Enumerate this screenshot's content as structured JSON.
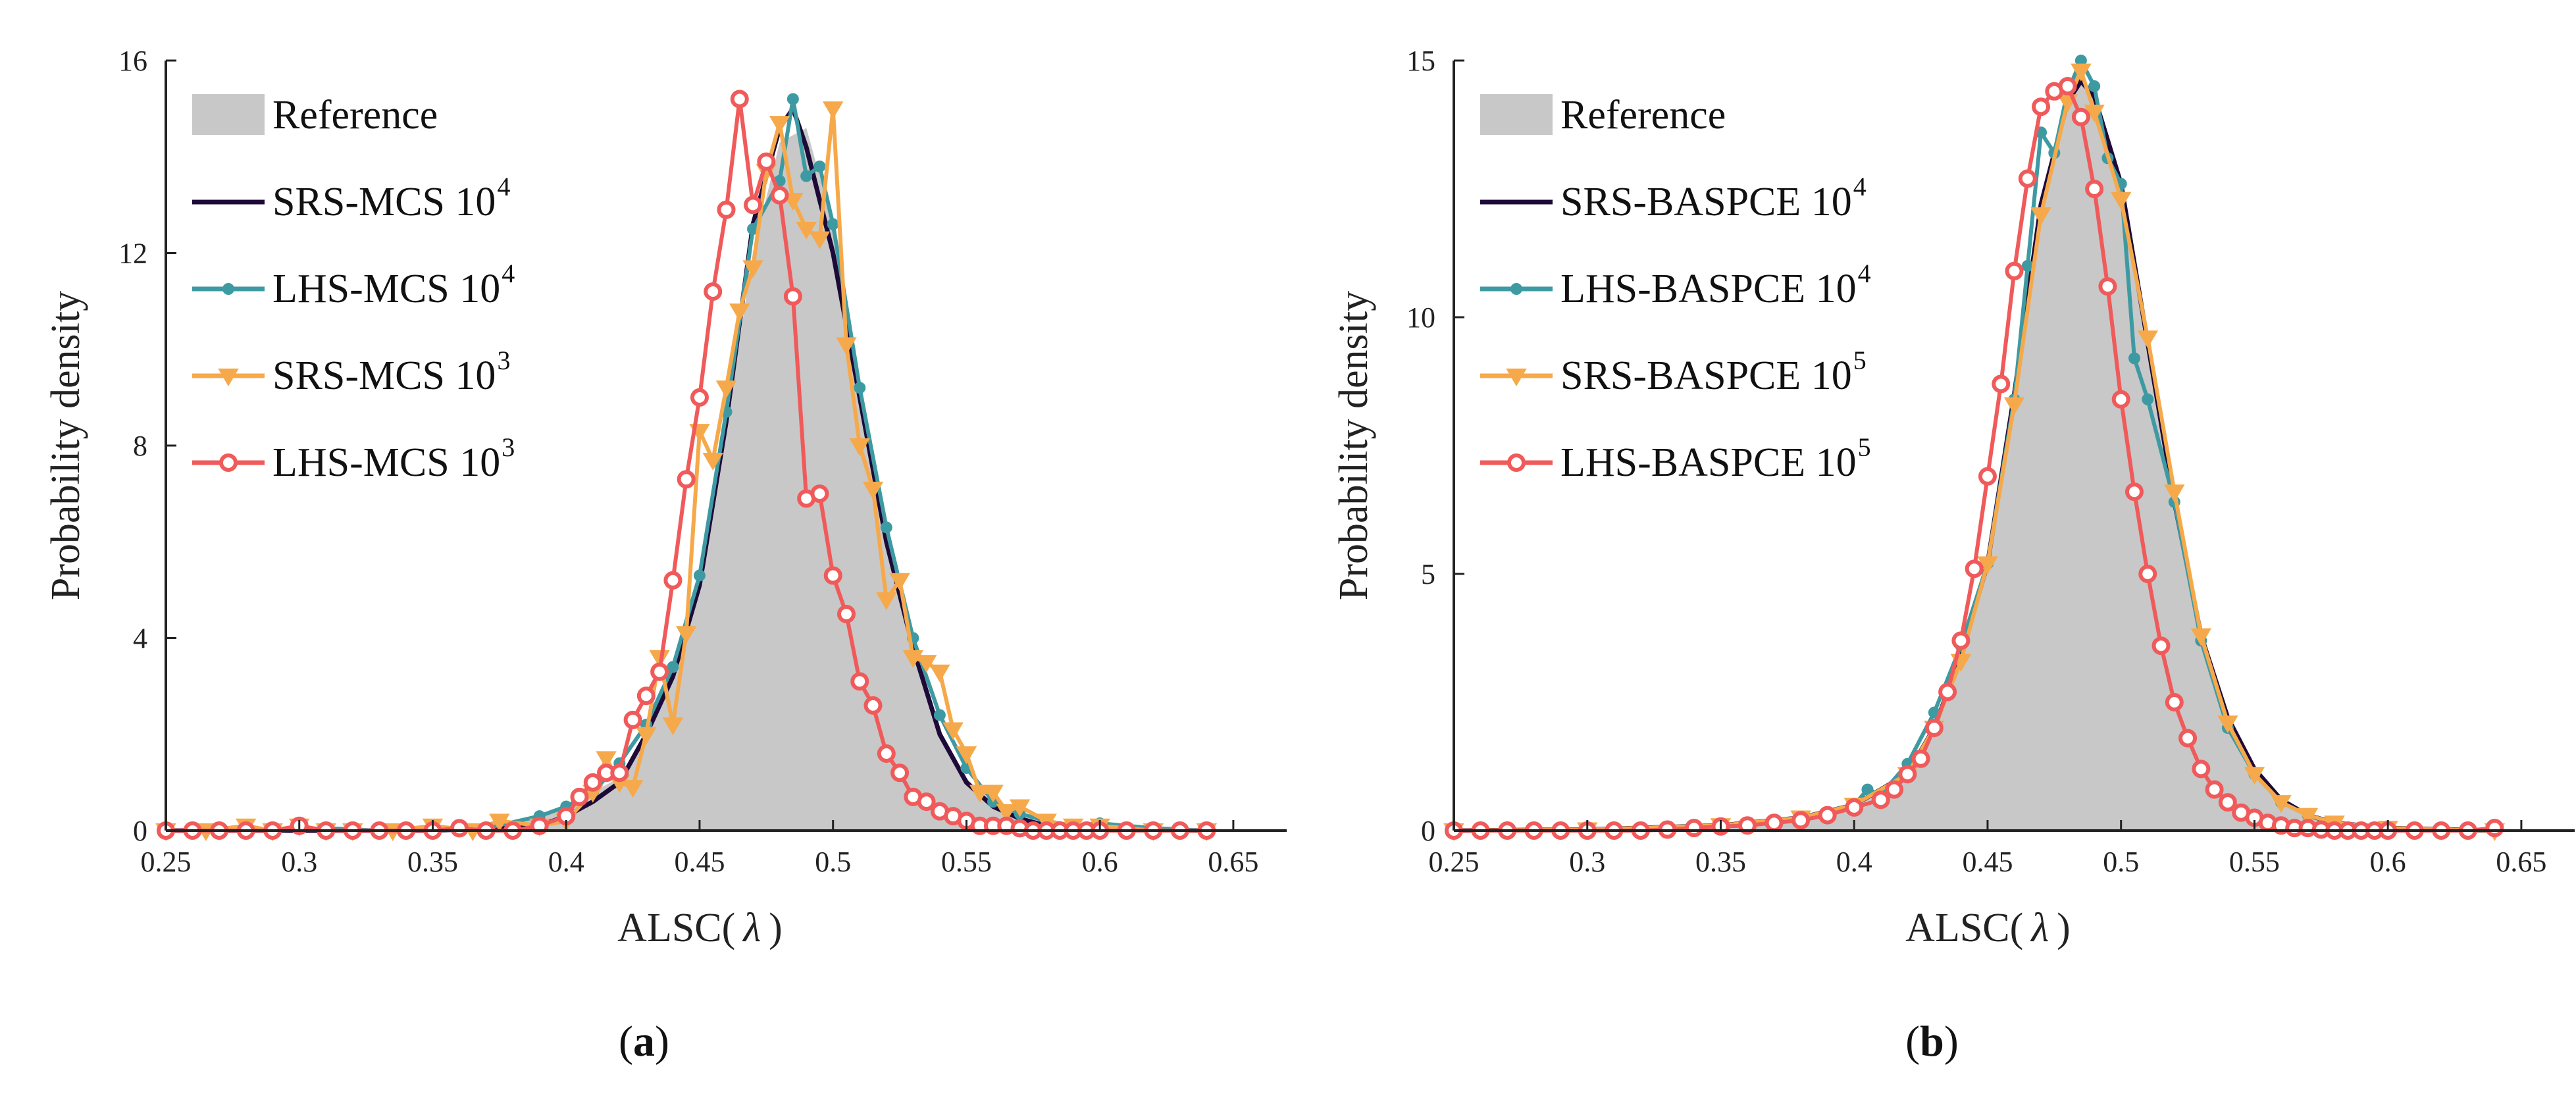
{
  "charts": [
    {
      "id": "a",
      "caption_letter": "a",
      "ylabel": "Probability density",
      "xlabel_prefix": "ALSC(",
      "xlabel_symbol": "λ",
      "xlabel_suffix": ")",
      "xlim": [
        0.25,
        0.67
      ],
      "ylim": [
        0,
        16
      ],
      "xticks": [
        "0.25",
        "0.3",
        "0.35",
        "0.4",
        "0.45",
        "0.5",
        "0.55",
        "0.6",
        "0.65"
      ],
      "yticks": [
        "0",
        "4",
        "8",
        "12",
        "16"
      ],
      "legend": [
        {
          "label": "Reference",
          "sup": ""
        },
        {
          "label": "SRS-MCS 10",
          "sup": "4"
        },
        {
          "label": "LHS-MCS 10",
          "sup": "4"
        },
        {
          "label": "SRS-MCS 10",
          "sup": "3"
        },
        {
          "label": "LHS-MCS 10",
          "sup": "3"
        }
      ]
    },
    {
      "id": "b",
      "caption_letter": "b",
      "ylabel": "Probability density",
      "xlabel_prefix": "ALSC(",
      "xlabel_symbol": "λ",
      "xlabel_suffix": ")",
      "xlim": [
        0.25,
        0.67
      ],
      "ylim": [
        0,
        15
      ],
      "xticks": [
        "0.25",
        "0.3",
        "0.35",
        "0.4",
        "0.45",
        "0.5",
        "0.55",
        "0.6",
        "0.65"
      ],
      "yticks": [
        "0",
        "5",
        "10",
        "15"
      ],
      "legend": [
        {
          "label": "Reference",
          "sup": ""
        },
        {
          "label": "SRS-BASPCE 10",
          "sup": "4"
        },
        {
          "label": "LHS-BASPCE 10",
          "sup": "4"
        },
        {
          "label": "SRS-BASPCE 10",
          "sup": "5"
        },
        {
          "label": "LHS-BASPCE 10",
          "sup": "5"
        }
      ]
    }
  ],
  "colors": {
    "reference": "#c8c8c8",
    "srs_large": "#1d0a38",
    "lhs_large": "#3e9aa2",
    "srs_small": "#f6a94a",
    "lhs_small": "#f05a5a",
    "axis": "#222222"
  },
  "chart_data": [
    {
      "type": "area",
      "title": "(a)",
      "xlabel": "ALSC(λ)",
      "ylabel": "Probability density",
      "xlim": [
        0.25,
        0.67
      ],
      "ylim": [
        0,
        16
      ],
      "series": [
        {
          "name": "Reference",
          "style": "histogram",
          "x": [
            0.25,
            0.3,
            0.35,
            0.38,
            0.4,
            0.42,
            0.43,
            0.44,
            0.45,
            0.46,
            0.47,
            0.48,
            0.49,
            0.5,
            0.51,
            0.52,
            0.53,
            0.54,
            0.55,
            0.56,
            0.57,
            0.58,
            0.6,
            0.64
          ],
          "y": [
            0,
            0,
            0,
            0.2,
            0.5,
            1.1,
            2.0,
            3.3,
            5.3,
            8.4,
            12.0,
            14.3,
            14.6,
            12.6,
            9.4,
            6.2,
            3.7,
            2.1,
            1.1,
            0.5,
            0.25,
            0.1,
            0.02,
            0
          ]
        },
        {
          "name": "SRS-MCS 10^4",
          "style": "line",
          "x": [
            0.25,
            0.35,
            0.39,
            0.4,
            0.41,
            0.42,
            0.43,
            0.44,
            0.45,
            0.46,
            0.47,
            0.48,
            0.485,
            0.49,
            0.5,
            0.51,
            0.52,
            0.53,
            0.54,
            0.55,
            0.56,
            0.57,
            0.58,
            0.6,
            0.64
          ],
          "y": [
            0,
            0,
            0.1,
            0.3,
            0.6,
            1.0,
            2.0,
            3.2,
            5.1,
            8.5,
            12.6,
            14.6,
            15.0,
            14.2,
            12.0,
            9.0,
            6.0,
            3.8,
            2.0,
            1.0,
            0.5,
            0.25,
            0.1,
            0.02,
            0
          ]
        },
        {
          "name": "LHS-MCS 10^4",
          "style": "line+dot",
          "x": [
            0.25,
            0.27,
            0.29,
            0.31,
            0.33,
            0.35,
            0.37,
            0.39,
            0.4,
            0.41,
            0.42,
            0.43,
            0.44,
            0.45,
            0.46,
            0.47,
            0.48,
            0.485,
            0.49,
            0.495,
            0.5,
            0.51,
            0.52,
            0.53,
            0.54,
            0.55,
            0.56,
            0.57,
            0.58,
            0.59,
            0.6,
            0.62,
            0.64
          ],
          "y": [
            0,
            0,
            0,
            0.05,
            0,
            0,
            0.05,
            0.3,
            0.5,
            0.8,
            1.4,
            2.2,
            3.4,
            5.3,
            8.7,
            12.5,
            13.5,
            15.2,
            13.6,
            13.8,
            12.6,
            9.2,
            6.3,
            4.0,
            2.4,
            1.3,
            0.6,
            0.35,
            0.2,
            0.1,
            0.15,
            0.05,
            0
          ]
        },
        {
          "name": "SRS-MCS 10^3",
          "style": "line+triangle",
          "x": [
            0.25,
            0.265,
            0.28,
            0.29,
            0.3,
            0.31,
            0.32,
            0.335,
            0.35,
            0.365,
            0.375,
            0.39,
            0.4,
            0.41,
            0.415,
            0.42,
            0.425,
            0.43,
            0.435,
            0.44,
            0.445,
            0.45,
            0.455,
            0.46,
            0.465,
            0.47,
            0.475,
            0.48,
            0.485,
            0.49,
            0.495,
            0.5,
            0.505,
            0.51,
            0.515,
            0.52,
            0.525,
            0.53,
            0.535,
            0.54,
            0.545,
            0.55,
            0.555,
            0.56,
            0.565,
            0.57,
            0.58,
            0.59,
            0.6,
            0.62,
            0.64
          ],
          "y": [
            0,
            0,
            0.1,
            0,
            0.1,
            0,
            0,
            0,
            0.1,
            0,
            0.2,
            0.1,
            0.2,
            0.8,
            1.5,
            1.0,
            0.9,
            2.0,
            3.6,
            2.2,
            4.1,
            8.3,
            7.7,
            9.2,
            10.8,
            11.7,
            13.7,
            14.7,
            13.1,
            12.5,
            12.3,
            15.0,
            10.1,
            8.0,
            7.1,
            4.8,
            5.2,
            3.6,
            3.5,
            3.3,
            2.1,
            1.6,
            0.8,
            0.8,
            0.4,
            0.5,
            0.2,
            0.1,
            0.1,
            0,
            0
          ]
        },
        {
          "name": "LHS-MCS 10^3",
          "style": "line+circle",
          "x": [
            0.25,
            0.26,
            0.27,
            0.28,
            0.29,
            0.3,
            0.31,
            0.32,
            0.33,
            0.34,
            0.35,
            0.36,
            0.37,
            0.38,
            0.39,
            0.4,
            0.405,
            0.41,
            0.415,
            0.42,
            0.425,
            0.43,
            0.435,
            0.44,
            0.445,
            0.45,
            0.455,
            0.46,
            0.465,
            0.47,
            0.475,
            0.48,
            0.485,
            0.49,
            0.495,
            0.5,
            0.505,
            0.51,
            0.515,
            0.52,
            0.525,
            0.53,
            0.535,
            0.54,
            0.545,
            0.55,
            0.555,
            0.56,
            0.565,
            0.57,
            0.575,
            0.58,
            0.585,
            0.59,
            0.595,
            0.6,
            0.61,
            0.62,
            0.63,
            0.64
          ],
          "y": [
            0,
            0,
            0,
            0,
            0,
            0.1,
            0,
            0,
            0,
            0,
            0,
            0.05,
            0,
            0,
            0.1,
            0.3,
            0.7,
            1.0,
            1.2,
            1.2,
            2.3,
            2.8,
            3.3,
            5.2,
            7.3,
            9.0,
            11.2,
            12.9,
            15.2,
            13.0,
            13.9,
            13.2,
            11.1,
            6.9,
            7.0,
            5.3,
            4.5,
            3.1,
            2.6,
            1.6,
            1.2,
            0.7,
            0.6,
            0.4,
            0.3,
            0.2,
            0.1,
            0.1,
            0.1,
            0.05,
            0,
            0,
            0,
            0,
            0,
            0,
            0,
            0,
            0,
            0
          ]
        }
      ]
    },
    {
      "type": "area",
      "title": "(b)",
      "xlabel": "ALSC(λ)",
      "ylabel": "Probability density",
      "xlim": [
        0.25,
        0.67
      ],
      "ylim": [
        0,
        15
      ],
      "series": [
        {
          "name": "Reference",
          "style": "histogram",
          "x": [
            0.25,
            0.35,
            0.38,
            0.4,
            0.42,
            0.43,
            0.44,
            0.45,
            0.46,
            0.47,
            0.48,
            0.485,
            0.49,
            0.5,
            0.51,
            0.52,
            0.53,
            0.54,
            0.55,
            0.56,
            0.57,
            0.58,
            0.6,
            0.64
          ],
          "y": [
            0,
            0.05,
            0.2,
            0.5,
            1.2,
            2.1,
            3.4,
            5.3,
            8.2,
            11.9,
            14.2,
            14.6,
            14.3,
            12.4,
            9.3,
            6.3,
            3.9,
            2.2,
            1.2,
            0.6,
            0.3,
            0.15,
            0.05,
            0
          ]
        },
        {
          "name": "SRS-BASPCE 10^4",
          "style": "line",
          "x": [
            0.25,
            0.3,
            0.35,
            0.38,
            0.4,
            0.42,
            0.43,
            0.44,
            0.45,
            0.46,
            0.47,
            0.48,
            0.485,
            0.49,
            0.5,
            0.51,
            0.52,
            0.53,
            0.54,
            0.55,
            0.56,
            0.57,
            0.58,
            0.6,
            0.64
          ],
          "y": [
            0,
            0.02,
            0.1,
            0.25,
            0.5,
            1.1,
            2.0,
            3.4,
            5.2,
            8.5,
            12.2,
            14.2,
            14.6,
            14.3,
            12.6,
            9.5,
            6.4,
            3.8,
            2.2,
            1.2,
            0.6,
            0.3,
            0.15,
            0.05,
            0
          ]
        },
        {
          "name": "LHS-BASPCE 10^4",
          "style": "line+dot",
          "x": [
            0.25,
            0.3,
            0.35,
            0.38,
            0.4,
            0.405,
            0.41,
            0.42,
            0.43,
            0.44,
            0.45,
            0.46,
            0.465,
            0.47,
            0.475,
            0.48,
            0.485,
            0.49,
            0.495,
            0.5,
            0.505,
            0.51,
            0.52,
            0.53,
            0.54,
            0.55,
            0.56,
            0.57,
            0.58,
            0.6,
            0.64
          ],
          "y": [
            0,
            0.02,
            0.1,
            0.25,
            0.5,
            0.8,
            0.7,
            1.3,
            2.3,
            3.6,
            5.2,
            8.4,
            11.0,
            13.6,
            13.2,
            14.4,
            15.0,
            14.5,
            13.1,
            12.6,
            9.2,
            8.4,
            6.4,
            3.7,
            2.0,
            1.1,
            0.55,
            0.3,
            0.15,
            0.05,
            0
          ]
        },
        {
          "name": "SRS-BASPCE 10^5",
          "style": "line+triangle",
          "x": [
            0.25,
            0.3,
            0.35,
            0.38,
            0.4,
            0.42,
            0.43,
            0.44,
            0.45,
            0.46,
            0.47,
            0.48,
            0.485,
            0.49,
            0.5,
            0.51,
            0.52,
            0.53,
            0.54,
            0.55,
            0.56,
            0.57,
            0.58,
            0.6,
            0.64
          ],
          "y": [
            0,
            0.02,
            0.1,
            0.25,
            0.5,
            1.1,
            2.0,
            3.3,
            5.2,
            8.3,
            12.0,
            14.2,
            14.8,
            14.0,
            12.3,
            9.6,
            6.6,
            3.8,
            2.1,
            1.1,
            0.55,
            0.3,
            0.15,
            0.05,
            0
          ]
        },
        {
          "name": "LHS-BASPCE 10^5",
          "style": "line+circle",
          "x": [
            0.25,
            0.26,
            0.27,
            0.28,
            0.29,
            0.3,
            0.31,
            0.32,
            0.33,
            0.34,
            0.35,
            0.36,
            0.37,
            0.38,
            0.39,
            0.4,
            0.41,
            0.415,
            0.42,
            0.425,
            0.43,
            0.435,
            0.44,
            0.445,
            0.45,
            0.455,
            0.46,
            0.465,
            0.47,
            0.475,
            0.48,
            0.485,
            0.49,
            0.495,
            0.5,
            0.505,
            0.51,
            0.515,
            0.52,
            0.525,
            0.53,
            0.535,
            0.54,
            0.545,
            0.55,
            0.555,
            0.56,
            0.565,
            0.57,
            0.575,
            0.58,
            0.585,
            0.59,
            0.595,
            0.6,
            0.61,
            0.62,
            0.63,
            0.64
          ],
          "y": [
            0,
            0,
            0,
            0,
            0,
            0,
            0,
            0,
            0.02,
            0.05,
            0.08,
            0.1,
            0.15,
            0.2,
            0.3,
            0.45,
            0.6,
            0.8,
            1.1,
            1.4,
            2.0,
            2.7,
            3.7,
            5.1,
            6.9,
            8.7,
            10.9,
            12.7,
            14.1,
            14.4,
            14.5,
            13.9,
            12.5,
            10.6,
            8.4,
            6.6,
            5.0,
            3.6,
            2.5,
            1.8,
            1.2,
            0.8,
            0.55,
            0.35,
            0.25,
            0.15,
            0.1,
            0.05,
            0.05,
            0.02,
            0,
            0,
            0,
            0,
            0,
            0,
            0,
            0,
            0.05
          ]
        }
      ]
    }
  ]
}
